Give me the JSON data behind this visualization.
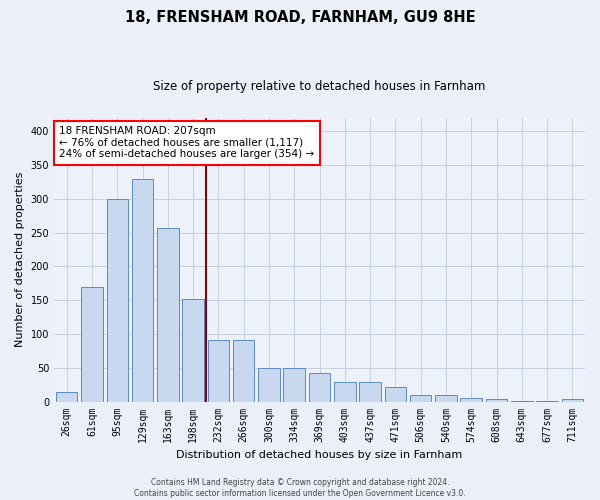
{
  "title1": "18, FRENSHAM ROAD, FARNHAM, GU9 8HE",
  "title2": "Size of property relative to detached houses in Farnham",
  "xlabel": "Distribution of detached houses by size in Farnham",
  "ylabel": "Number of detached properties",
  "categories": [
    "26sqm",
    "61sqm",
    "95sqm",
    "129sqm",
    "163sqm",
    "198sqm",
    "232sqm",
    "266sqm",
    "300sqm",
    "334sqm",
    "369sqm",
    "403sqm",
    "437sqm",
    "471sqm",
    "506sqm",
    "540sqm",
    "574sqm",
    "608sqm",
    "643sqm",
    "677sqm",
    "711sqm"
  ],
  "values": [
    14,
    170,
    300,
    330,
    257,
    152,
    91,
    91,
    50,
    50,
    43,
    29,
    29,
    22,
    10,
    9,
    5,
    4,
    1,
    1,
    4
  ],
  "bar_color": "#c8d8ef",
  "bar_edge_color": "#5a8cc8",
  "vline_x": 5.5,
  "vline_color": "#8b0000",
  "annotation_line1": "18 FRENSHAM ROAD: 207sqm",
  "annotation_line2": "← 76% of detached houses are smaller (1,117)",
  "annotation_line3": "24% of semi-detached houses are larger (354) →",
  "annotation_box_color": "white",
  "annotation_box_edge": "red",
  "ylim": [
    0,
    420
  ],
  "yticks": [
    0,
    50,
    100,
    150,
    200,
    250,
    300,
    350,
    400
  ],
  "footer1": "Contains HM Land Registry data © Crown copyright and database right 2024.",
  "footer2": "Contains public sector information licensed under the Open Government Licence v3.0.",
  "bg_color": "#eaeff8",
  "plot_bg_color": "#edf1fa"
}
